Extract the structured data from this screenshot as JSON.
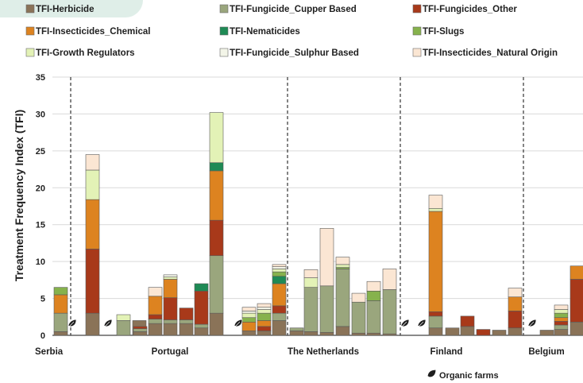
{
  "chart_data": {
    "type": "bar",
    "stacked": true,
    "ylabel": "Treatment Frequency Index (TFI)",
    "ylim": [
      0,
      35
    ],
    "yticks": [
      0,
      5,
      10,
      15,
      20,
      25,
      30,
      35
    ],
    "grid": true,
    "legend_position": "top",
    "series": [
      {
        "name": "TFI-Herbicide",
        "color": "#8a7358"
      },
      {
        "name": "TFI-Fungicide_Cupper Based",
        "color": "#9aa67d"
      },
      {
        "name": "TFI-Fungicides_Other",
        "color": "#a8391a"
      },
      {
        "name": "TFI-Insecticides_Chemical",
        "color": "#dd8320"
      },
      {
        "name": "TFI-Nematicides",
        "color": "#1e8a55"
      },
      {
        "name": "TFI-Slugs",
        "color": "#86b24c"
      },
      {
        "name": "TFI-Growth Regulators",
        "color": "#e3f2b6"
      },
      {
        "name": "TFI-Fungicide_Sulphur Based",
        "color": "#f3f5e8"
      },
      {
        "name": "TFI-Insecticides_Natural Origin",
        "color": "#fbe6d3"
      }
    ],
    "countries": [
      "Serbia",
      "Portugal",
      "The Netherlands",
      "Finland",
      "Belgium"
    ],
    "bars": [
      {
        "country": "Serbia",
        "organic": false,
        "values": [
          0.5,
          2.5,
          0,
          2.5,
          0,
          1.0,
          0,
          0,
          0
        ]
      },
      {
        "country": "Serbia",
        "organic": false,
        "values": [
          0,
          0,
          0,
          0,
          0,
          0,
          0,
          0,
          0
        ]
      },
      {
        "country": "Serbia",
        "organic": true,
        "values": [
          0,
          0,
          0,
          0,
          0,
          0,
          0,
          0,
          0
        ]
      },
      {
        "country": "Serbia",
        "organic": false,
        "values": [
          3.0,
          0,
          8.7,
          6.7,
          0,
          0,
          4.0,
          0,
          2.1
        ]
      },
      {
        "country": "Serbia",
        "organic": true,
        "values": [
          0,
          0,
          0,
          0,
          0,
          0,
          0,
          0,
          0
        ]
      },
      {
        "country": "Portugal",
        "organic": false,
        "values": [
          0,
          2.0,
          0,
          0,
          0,
          0,
          0.8,
          0,
          0
        ]
      },
      {
        "country": "Portugal",
        "organic": false,
        "values": [
          2.0,
          0,
          0,
          0,
          0,
          0,
          0,
          0,
          0
        ]
      },
      {
        "country": "Portugal",
        "organic": false,
        "values": [
          0.5,
          0.4,
          0.3,
          0,
          0,
          0,
          0,
          0,
          0
        ]
      },
      {
        "country": "Portugal",
        "organic": false,
        "values": [
          1.6,
          0.6,
          0.6,
          2.5,
          0,
          0,
          0,
          0,
          1.2
        ]
      },
      {
        "country": "Portugal",
        "organic": false,
        "values": [
          1.6,
          0.5,
          3.0,
          2.5,
          0,
          0,
          0.3,
          0.3,
          0
        ]
      },
      {
        "country": "Portugal",
        "organic": false,
        "values": [
          1.6,
          0.5,
          1.6,
          0,
          0,
          0,
          0,
          0,
          0
        ]
      },
      {
        "country": "Portugal",
        "organic": false,
        "values": [
          1.0,
          0.5,
          4.5,
          0,
          1.0,
          0,
          0,
          0,
          0
        ]
      },
      {
        "country": "Portugal",
        "organic": false,
        "values": [
          3.0,
          7.8,
          4.8,
          6.7,
          1.1,
          0,
          6.8,
          0,
          0
        ]
      },
      {
        "country": "The Netherlands",
        "organic": true,
        "values": [
          0.6,
          0,
          0,
          1.2,
          0,
          0.6,
          0.6,
          0.3,
          0.5
        ]
      },
      {
        "country": "The Netherlands",
        "organic": false,
        "values": [
          0.6,
          0,
          0.6,
          0.8,
          0,
          1.0,
          0.5,
          0.3,
          0.5
        ]
      },
      {
        "country": "The Netherlands",
        "organic": false,
        "values": [
          2.0,
          1.0,
          1.0,
          3.0,
          1.0,
          0.6,
          0.4,
          0.3,
          0.3
        ]
      },
      {
        "country": "The Netherlands",
        "organic": false,
        "values": [
          0.6,
          0.4,
          0,
          0,
          0,
          0,
          0,
          0,
          0
        ]
      },
      {
        "country": "The Netherlands",
        "organic": false,
        "values": [
          0.5,
          6.0,
          0,
          0,
          0,
          0,
          1.3,
          0,
          1.1
        ]
      },
      {
        "country": "The Netherlands",
        "organic": false,
        "values": [
          0.4,
          6.3,
          0,
          0,
          0,
          0,
          0,
          0,
          7.8
        ]
      },
      {
        "country": "The Netherlands",
        "organic": false,
        "values": [
          1.2,
          7.8,
          0,
          0,
          0,
          0.2,
          0.4,
          0,
          1.0
        ]
      },
      {
        "country": "The Netherlands",
        "organic": false,
        "values": [
          0.3,
          4.2,
          0,
          0,
          0,
          0,
          0,
          0,
          1.2
        ]
      },
      {
        "country": "The Netherlands",
        "organic": false,
        "values": [
          0.3,
          4.4,
          0,
          0,
          0,
          1.3,
          0,
          0,
          1.3
        ]
      },
      {
        "country": "The Netherlands",
        "organic": false,
        "values": [
          0.2,
          6.0,
          0,
          0,
          0,
          0,
          0,
          0,
          2.8
        ]
      },
      {
        "country": "Finland",
        "organic": true,
        "values": [
          0,
          0,
          0,
          0,
          0,
          0,
          0,
          0,
          0
        ]
      },
      {
        "country": "Finland",
        "organic": true,
        "values": [
          0,
          0,
          0,
          0,
          0,
          0,
          0,
          0,
          0
        ]
      },
      {
        "country": "Finland",
        "organic": false,
        "values": [
          1.0,
          1.6,
          0.6,
          13.6,
          0,
          0,
          0.4,
          0,
          1.8
        ]
      },
      {
        "country": "Finland",
        "organic": false,
        "values": [
          1.0,
          0,
          0,
          0,
          0,
          0,
          0,
          0,
          0
        ]
      },
      {
        "country": "Finland",
        "organic": false,
        "values": [
          1.2,
          0,
          1.4,
          0,
          0,
          0,
          0,
          0,
          0
        ]
      },
      {
        "country": "Finland",
        "organic": false,
        "values": [
          0,
          0,
          0.8,
          0,
          0,
          0,
          0,
          0,
          0
        ]
      },
      {
        "country": "Finland",
        "organic": false,
        "values": [
          0.7,
          0,
          0,
          0,
          0,
          0,
          0,
          0,
          0
        ]
      },
      {
        "country": "Finland",
        "organic": false,
        "values": [
          1.0,
          0,
          2.3,
          1.9,
          0,
          0,
          0,
          0,
          1.2
        ]
      },
      {
        "country": "Belgium",
        "organic": true,
        "values": [
          0.7,
          0,
          0,
          0,
          0,
          0,
          0,
          0,
          0
        ]
      },
      {
        "country": "Belgium",
        "organic": false,
        "values": [
          0.8,
          0.6,
          0.5,
          0.5,
          0,
          0.6,
          0.5,
          0,
          0.6
        ]
      },
      {
        "country": "Belgium",
        "organic": false,
        "values": [
          1.8,
          0,
          5.8,
          1.8,
          0,
          0,
          0,
          0,
          0
        ]
      }
    ],
    "annotation": "Organic farms"
  }
}
